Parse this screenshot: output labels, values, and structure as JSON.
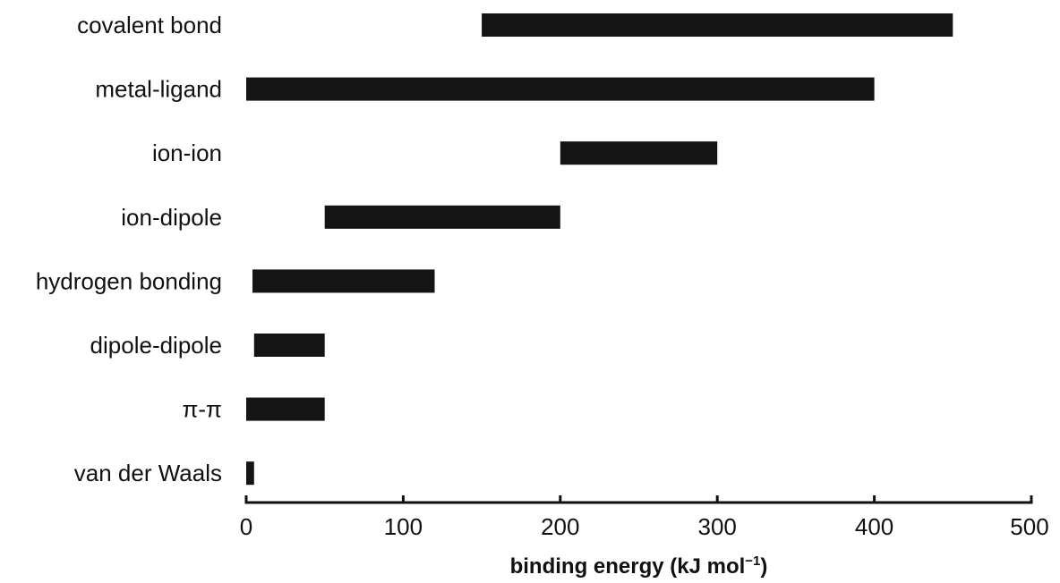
{
  "chart_data": {
    "type": "bar",
    "orientation": "horizontal",
    "bar_style": "range",
    "categories": [
      "covalent bond",
      "metal-ligand",
      "ion-ion",
      "ion-dipole",
      "hydrogen bonding",
      "dipole-dipole",
      "π-π",
      "van der Waals"
    ],
    "ranges": [
      [
        150,
        450
      ],
      [
        0,
        400
      ],
      [
        200,
        300
      ],
      [
        50,
        200
      ],
      [
        4,
        120
      ],
      [
        5,
        50
      ],
      [
        0,
        50
      ],
      [
        0,
        5
      ]
    ],
    "xlim": [
      0,
      500
    ],
    "xticks": [
      0,
      100,
      200,
      300,
      400,
      500
    ],
    "xlabel": "binding energy (kJ mol",
    "xlabel_superscript": "−1",
    "xlabel_suffix": ")",
    "bar_color": "#141414",
    "grid": false
  }
}
